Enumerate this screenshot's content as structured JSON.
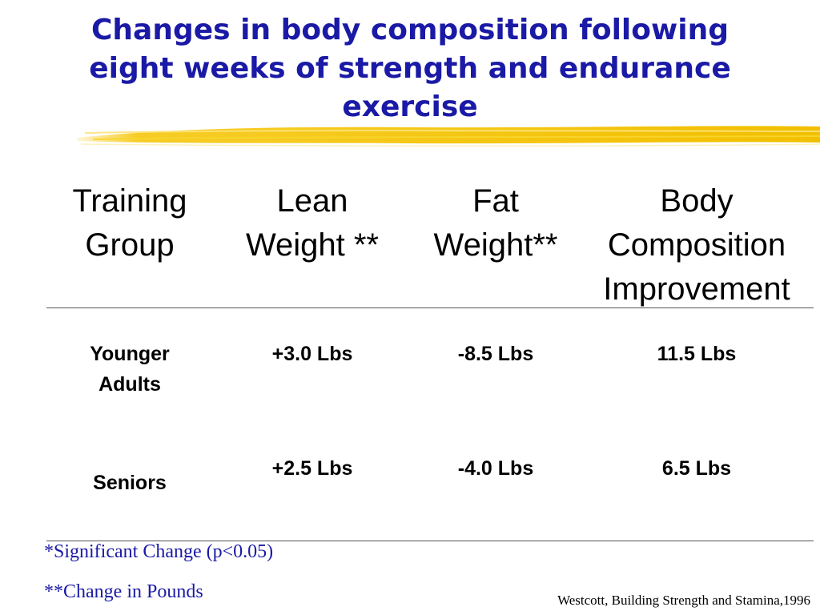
{
  "slide": {
    "title": {
      "line1": "Changes in body composition following",
      "line2": "eight weeks of strength and endurance",
      "line3": "exercise"
    },
    "colors": {
      "title": "#1a1aa6",
      "highlight": "#f5c400",
      "footnote": "#1a1aa6"
    }
  },
  "table": {
    "headers": [
      {
        "lines": [
          "Training",
          "Group"
        ]
      },
      {
        "lines": [
          "Lean",
          "Weight **"
        ]
      },
      {
        "lines": [
          "Fat",
          "Weight**"
        ]
      },
      {
        "lines": [
          "Body",
          "Composition",
          "Improvement"
        ]
      }
    ],
    "rows": [
      {
        "group": [
          "Younger",
          "Adults"
        ],
        "lean": "+3.0 Lbs",
        "fat": "-8.5 Lbs",
        "improvement": "11.5 Lbs"
      },
      {
        "group": [
          "Seniors"
        ],
        "lean": "+2.5 Lbs",
        "fat": "-4.0 Lbs",
        "improvement": "6.5 Lbs"
      }
    ]
  },
  "footnotes": {
    "significant": "*Significant Change (p<0.05)",
    "pounds": "**Change in Pounds"
  },
  "source": "Westcott, Building Strength and Stamina,1996"
}
